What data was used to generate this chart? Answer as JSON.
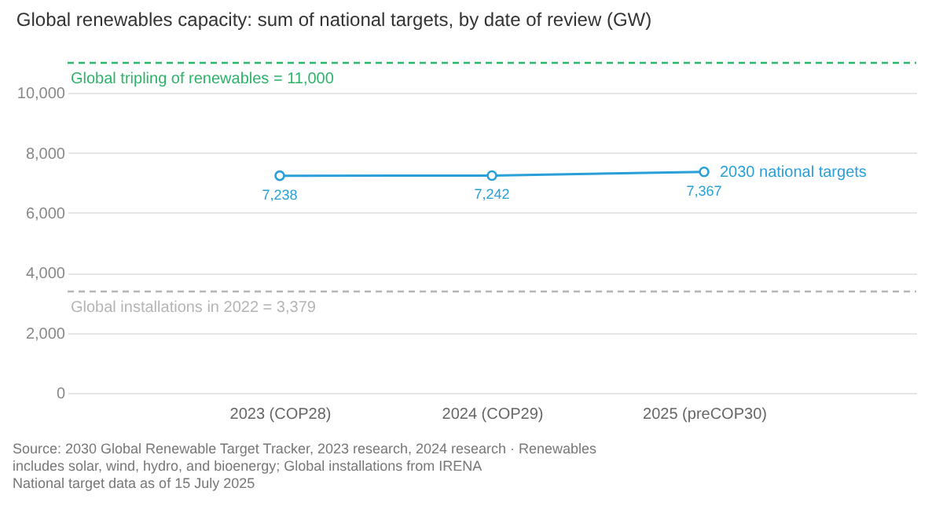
{
  "chart_data": {
    "type": "line",
    "title": "Global renewables capacity: sum of national targets, by date of review (GW)",
    "categories": [
      "2023 (COP28)",
      "2024 (COP29)",
      "2025 (preCOP30)"
    ],
    "series": [
      {
        "name": "2030 national targets",
        "color": "#2a9fd8",
        "values": [
          7238,
          7242,
          7367
        ],
        "value_labels": [
          "7,238",
          "7,242",
          "7,367"
        ]
      }
    ],
    "ylim": [
      0,
      11000
    ],
    "yticks": [
      0,
      {
        "value": 2000,
        "label": "2,000"
      },
      {
        "value": 4000,
        "label": "4,000"
      },
      {
        "value": 6000,
        "label": "6,000"
      },
      {
        "value": 8000,
        "label": "8,000"
      },
      {
        "value": 10000,
        "label": "10,000"
      }
    ],
    "grid": "y",
    "marker": "circle",
    "line_style": "solid",
    "ref_lines": [
      {
        "axis": "y",
        "value": 11000,
        "label": "Global tripling of renewables = 11,000",
        "color": "#2db36a",
        "line_style": "dashed"
      },
      {
        "axis": "y",
        "value": 3379,
        "label": "Global installations in 2022 = 3,379",
        "color": "#b5b5b5",
        "line_style": "dashed"
      }
    ],
    "annotations": [
      "Source: 2030 Global Renewable Target Tracker, 2023 research, 2024 research · Renewables",
      "includes solar, wind, hydro, and bioenergy; Global installations from IRENA",
      "National target data as of 15 July 2025"
    ]
  }
}
